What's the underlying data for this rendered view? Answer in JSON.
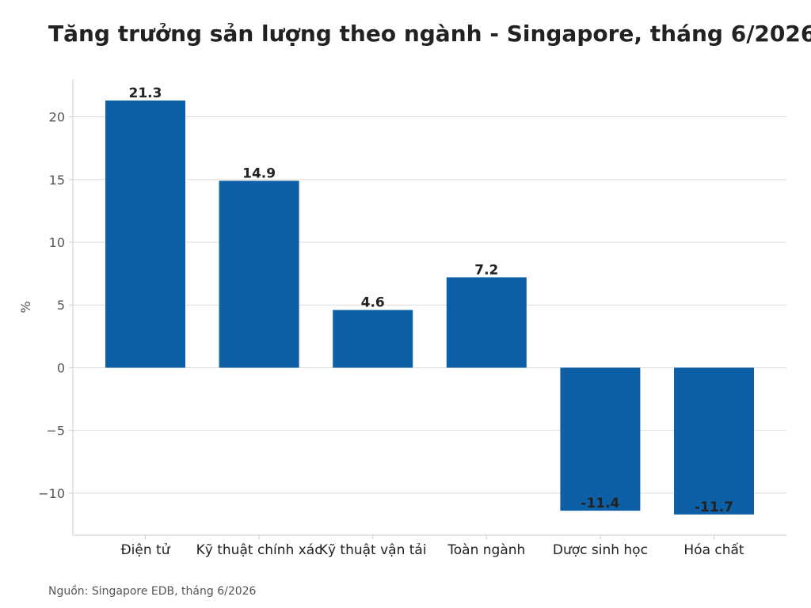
{
  "chart_data": {
    "type": "bar",
    "title": "Tăng trưởng sản lượng theo ngành - Singapore, tháng 6/2026",
    "xlabel": "",
    "ylabel": "%",
    "categories": [
      "Điện tử",
      "Kỹ thuật chính xác",
      "Kỹ thuật vận tải",
      "Toàn ngành",
      "Dược sinh học",
      "Hóa chất"
    ],
    "values": [
      21.3,
      14.9,
      4.6,
      7.2,
      -11.4,
      -11.7
    ],
    "value_labels": [
      "21.3",
      "14.9",
      "4.6",
      "7.2",
      "-11.4",
      "-11.7"
    ],
    "ylim": [
      -13.35,
      23
    ],
    "yticks": [
      -10,
      -5,
      0,
      5,
      10,
      15,
      20
    ],
    "ytick_labels": [
      "−10",
      "−5",
      "0",
      "5",
      "10",
      "15",
      "20"
    ],
    "grid": true,
    "legend": "none",
    "bar_color": "#0d5fa6",
    "grid_color": "#dddddd",
    "axis_color": "#cccccc"
  },
  "footer": {
    "source": "Nguồn: Singapore EDB, tháng 6/2026"
  }
}
